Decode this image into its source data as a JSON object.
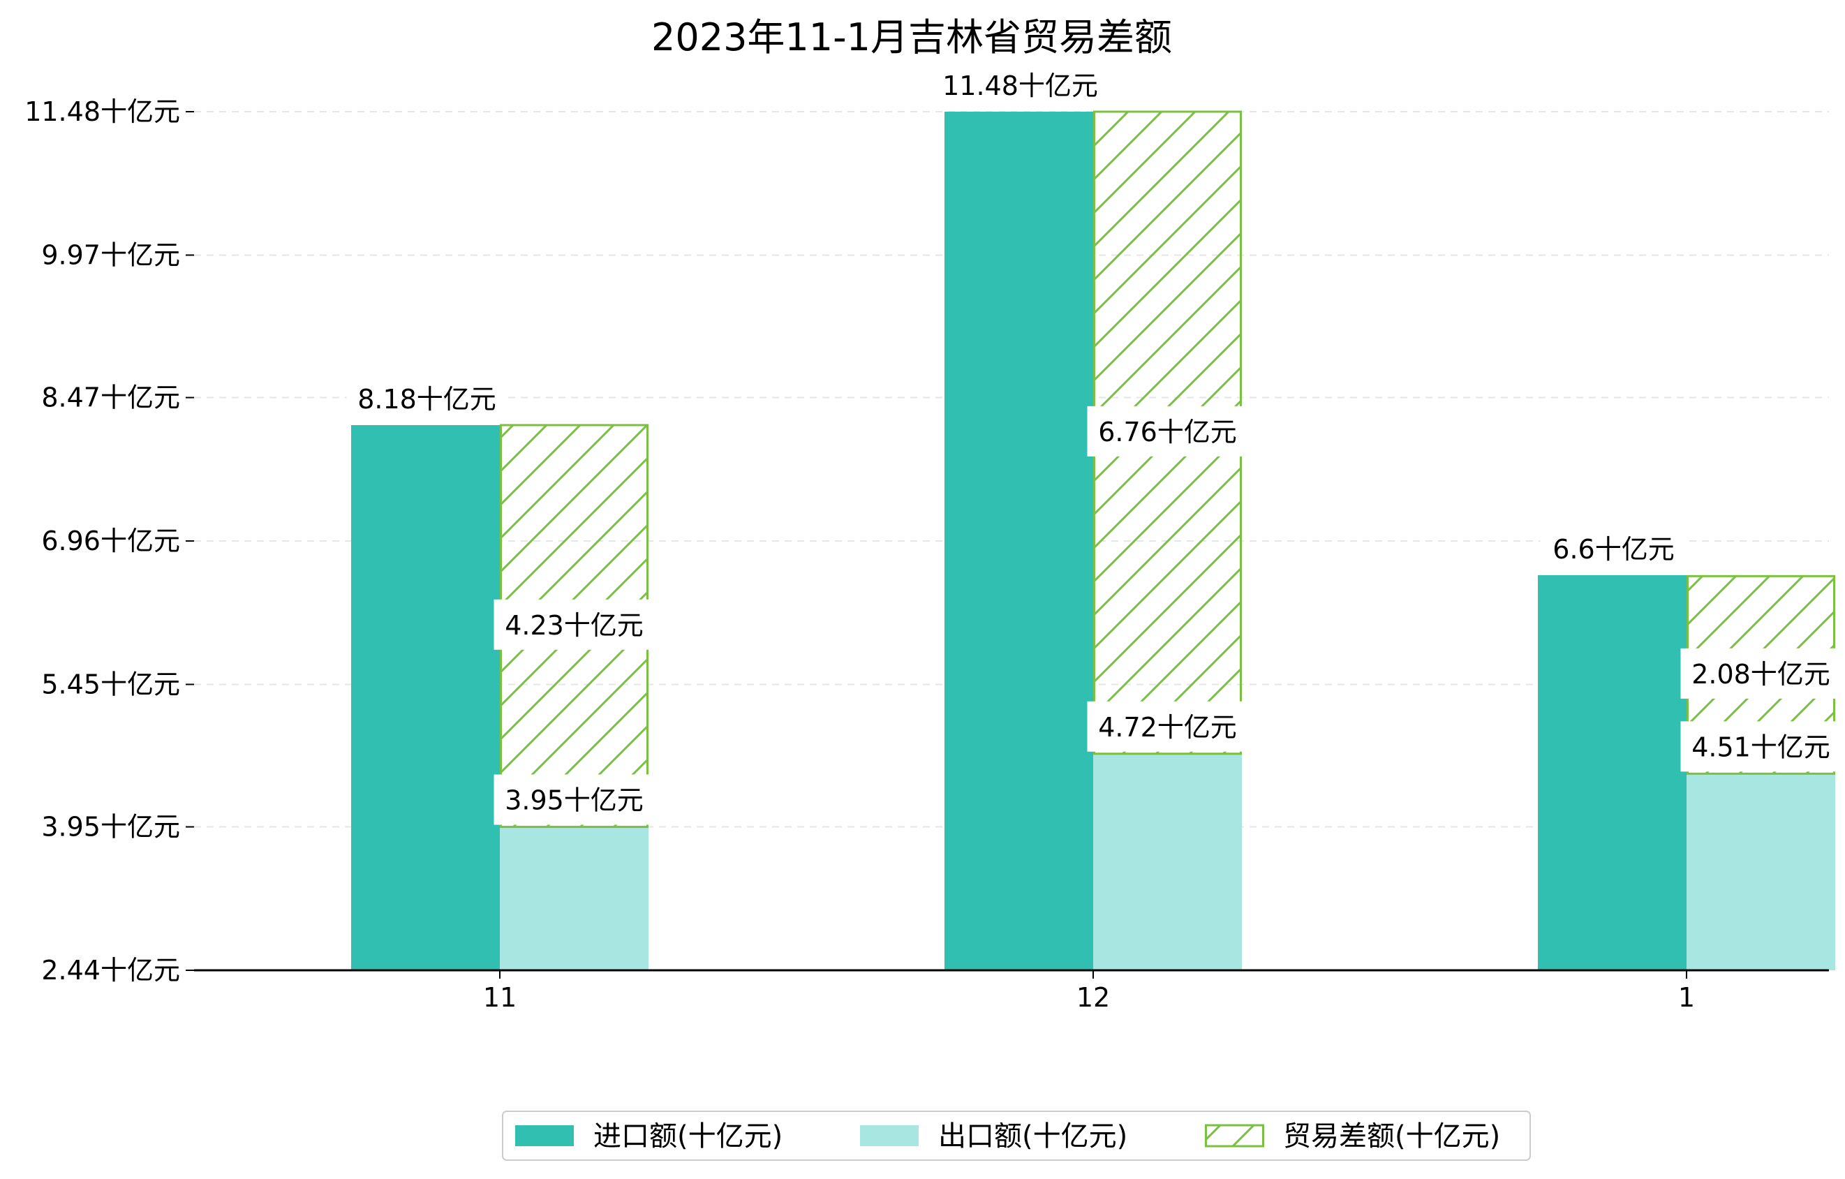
{
  "chart_data": {
    "type": "bar",
    "title": "2023年11-1月吉林省贸易差额",
    "categories": [
      "11",
      "12",
      "1"
    ],
    "series": [
      {
        "name": "进口额(十亿元)",
        "values": [
          8.18,
          11.48,
          6.6
        ],
        "labels": [
          "8.18十亿元",
          "11.48十亿元",
          "6.6十亿元"
        ],
        "color": "#31bfb1",
        "style": "solid"
      },
      {
        "name": "出口额(十亿元)",
        "values": [
          3.95,
          4.72,
          4.51
        ],
        "labels": [
          "3.95十亿元",
          "4.72十亿元",
          "4.51十亿元"
        ],
        "color": "#a8e6e1",
        "style": "solid"
      },
      {
        "name": "贸易差额(十亿元)",
        "values": [
          4.23,
          6.76,
          2.08
        ],
        "labels": [
          "4.23十亿元",
          "6.76十亿元",
          "2.08十亿元"
        ],
        "color": "#7bc043",
        "style": "hatch",
        "stacked_on": "出口额(十亿元)"
      }
    ],
    "y_ticks": [
      2.44,
      3.95,
      5.45,
      6.96,
      8.47,
      9.97,
      11.48
    ],
    "y_tick_labels": [
      "2.44十亿元",
      "3.95十亿元",
      "5.45十亿元",
      "6.96十亿元",
      "8.47十亿元",
      "9.97十亿元",
      "11.48十亿元"
    ],
    "ylim": [
      2.44,
      11.48
    ],
    "xlabel": "",
    "ylabel": "",
    "grid": "horizontal-dashed",
    "legend_position": "bottom-center"
  }
}
